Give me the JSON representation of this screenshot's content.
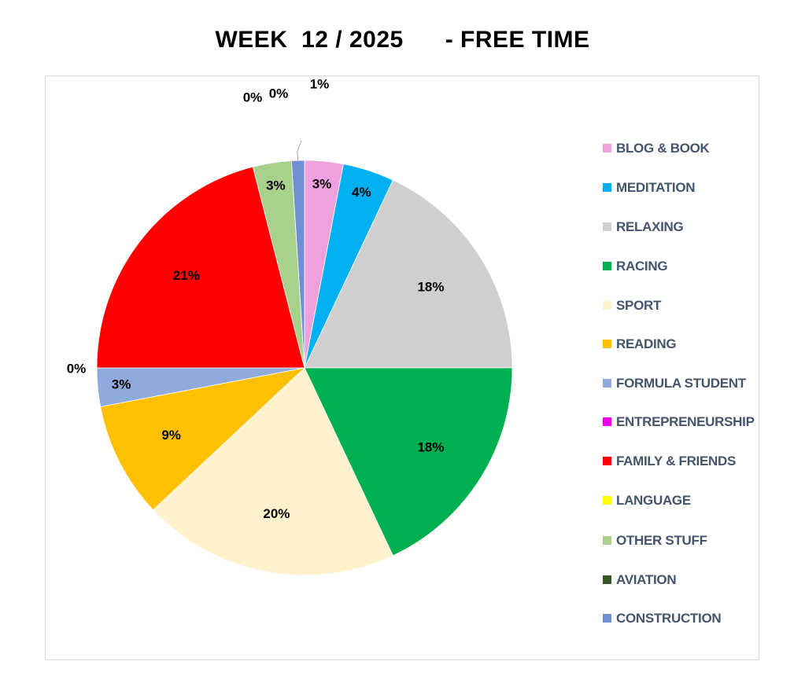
{
  "chart_data": {
    "type": "pie",
    "title": "WEEK  12 / 2025      - FREE TIME",
    "legend_position": "right",
    "slices": [
      {
        "name": "BLOG & BOOK",
        "value": 3,
        "label": "3%",
        "color": "#f09fdf"
      },
      {
        "name": "MEDITATION",
        "value": 4,
        "label": "4%",
        "color": "#00b0f0"
      },
      {
        "name": "RELAXING",
        "value": 18,
        "label": "18%",
        "color": "#d0cece"
      },
      {
        "name": "RACING",
        "value": 18,
        "label": "18%",
        "color": "#00b050"
      },
      {
        "name": "SPORT",
        "value": 20,
        "label": "20%",
        "color": "#fff2cc"
      },
      {
        "name": "READING",
        "value": 9,
        "label": "9%",
        "color": "#ffc000"
      },
      {
        "name": "FORMULA STUDENT",
        "value": 3,
        "label": "3%",
        "color": "#8faadc"
      },
      {
        "name": "ENTREPRENEURSHIP",
        "value": 0,
        "label": "0%",
        "color": "#ee00ee"
      },
      {
        "name": "FAMILY & FRIENDS",
        "value": 21,
        "label": "21%",
        "color": "#ff0000"
      },
      {
        "name": "LANGUAGE",
        "value": 0,
        "label": "0%",
        "color": "#ffff00"
      },
      {
        "name": "OTHER STUFF",
        "value": 3,
        "label": "3%",
        "color": "#a9d18e"
      },
      {
        "name": "AVIATION",
        "value": 0,
        "label": "0%",
        "color": "#375623"
      },
      {
        "name": "CONSTRUCTION",
        "value": 1,
        "label": "1%",
        "color": "#6f8fd2"
      }
    ]
  }
}
